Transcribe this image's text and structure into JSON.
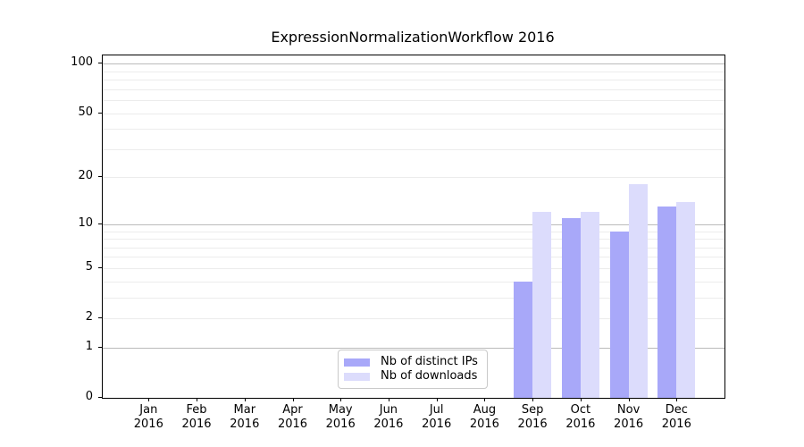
{
  "chart_data": {
    "type": "bar",
    "title": "ExpressionNormalizationWorkflow 2016",
    "categories": [
      "Jan",
      "Feb",
      "Mar",
      "Apr",
      "May",
      "Jun",
      "Jul",
      "Aug",
      "Sep",
      "Oct",
      "Nov",
      "Dec"
    ],
    "year_label": "2016",
    "series": [
      {
        "name": "Nb of distinct IPs",
        "color": "#a8a8f9",
        "values": [
          null,
          null,
          null,
          null,
          null,
          null,
          null,
          null,
          4,
          11,
          9,
          13
        ]
      },
      {
        "name": "Nb of downloads",
        "color": "#dcdcfc",
        "values": [
          null,
          null,
          null,
          null,
          null,
          null,
          null,
          null,
          12,
          12,
          18,
          14
        ]
      }
    ],
    "xlabel": "",
    "ylabel": "",
    "yscale": "symlog",
    "ylim": [
      0,
      112
    ],
    "yticks": [
      0,
      1,
      2,
      5,
      10,
      20,
      50,
      100
    ],
    "grid_major": [
      1,
      10,
      100
    ],
    "grid_minor": [
      2,
      3,
      4,
      5,
      6,
      7,
      8,
      9,
      20,
      30,
      40,
      50,
      60,
      70,
      80,
      90
    ],
    "legend_position": "lower-center",
    "colors": {
      "grid_major": "#bbbbbb",
      "grid_minor": "#ececec",
      "spine": "#000000",
      "background": "#ffffff"
    }
  }
}
